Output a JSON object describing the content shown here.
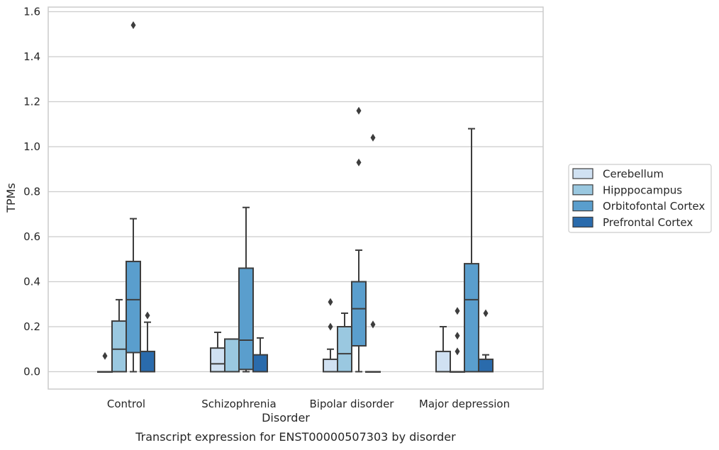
{
  "chart_data": {
    "type": "box",
    "xlabel": "Disorder",
    "ylabel": "TPMs",
    "caption": "Transcript expression for ENST00000507303 by disorder",
    "ylim": [
      -0.075,
      1.62
    ],
    "yticks": [
      "0.0",
      "0.2",
      "0.4",
      "0.6",
      "0.8",
      "1.0",
      "1.2",
      "1.4",
      "1.6"
    ],
    "grid": "horizontal",
    "legend_position": "right",
    "categories": [
      "Control",
      "Schizophrenia",
      "Bipolar disorder",
      "Major depression"
    ],
    "series": [
      {
        "name": "Cerebellum",
        "color": "#d0e1f2",
        "boxes": [
          {
            "whislo": 0,
            "q1": 0,
            "med": 0,
            "q3": 0,
            "whishi": 0,
            "fliers": [
              0.07
            ]
          },
          {
            "whislo": 0,
            "q1": 0,
            "med": 0.035,
            "q3": 0.105,
            "whishi": 0.175,
            "fliers": []
          },
          {
            "whislo": 0,
            "q1": 0,
            "med": 0,
            "q3": 0.055,
            "whishi": 0.1,
            "fliers": [
              0.2,
              0.31
            ]
          },
          {
            "whislo": 0,
            "q1": 0,
            "med": 0,
            "q3": 0.09,
            "whishi": 0.2,
            "fliers": []
          }
        ]
      },
      {
        "name": "Hipppocampus",
        "color": "#9ac8e0",
        "boxes": [
          {
            "whislo": 0,
            "q1": 0,
            "med": 0.1,
            "q3": 0.225,
            "whishi": 0.32,
            "fliers": []
          },
          {
            "whislo": 0,
            "q1": 0,
            "med": 0,
            "q3": 0.145,
            "whishi": 0.145,
            "fliers": []
          },
          {
            "whislo": 0,
            "q1": 0,
            "med": 0.08,
            "q3": 0.2,
            "whishi": 0.26,
            "fliers": []
          },
          {
            "whislo": 0,
            "q1": 0,
            "med": 0,
            "q3": 0,
            "whishi": 0,
            "fliers": [
              0.09,
              0.16,
              0.27
            ]
          }
        ]
      },
      {
        "name": "Orbitofontal Cortex",
        "color": "#5a9ecd",
        "boxes": [
          {
            "whislo": 0,
            "q1": 0.085,
            "med": 0.32,
            "q3": 0.49,
            "whishi": 0.68,
            "fliers": [
              1.54
            ]
          },
          {
            "whislo": 0,
            "q1": 0.01,
            "med": 0.14,
            "q3": 0.46,
            "whishi": 0.73,
            "fliers": []
          },
          {
            "whislo": 0,
            "q1": 0.115,
            "med": 0.28,
            "q3": 0.4,
            "whishi": 0.54,
            "fliers": [
              0.93,
              1.16
            ]
          },
          {
            "whislo": 0,
            "q1": 0,
            "med": 0.32,
            "q3": 0.48,
            "whishi": 1.08,
            "fliers": []
          }
        ]
      },
      {
        "name": "Prefrontal Cortex",
        "color": "#2a6bac",
        "boxes": [
          {
            "whislo": 0,
            "q1": 0,
            "med": 0,
            "q3": 0.09,
            "whishi": 0.22,
            "fliers": [
              0.25
            ]
          },
          {
            "whislo": 0,
            "q1": 0,
            "med": 0,
            "q3": 0.075,
            "whishi": 0.15,
            "fliers": []
          },
          {
            "whislo": 0,
            "q1": 0,
            "med": 0,
            "q3": 0,
            "whishi": 0,
            "fliers": [
              0.21,
              1.04
            ]
          },
          {
            "whislo": 0,
            "q1": 0,
            "med": 0,
            "q3": 0.055,
            "whishi": 0.075,
            "fliers": [
              0.26
            ]
          }
        ]
      }
    ]
  }
}
